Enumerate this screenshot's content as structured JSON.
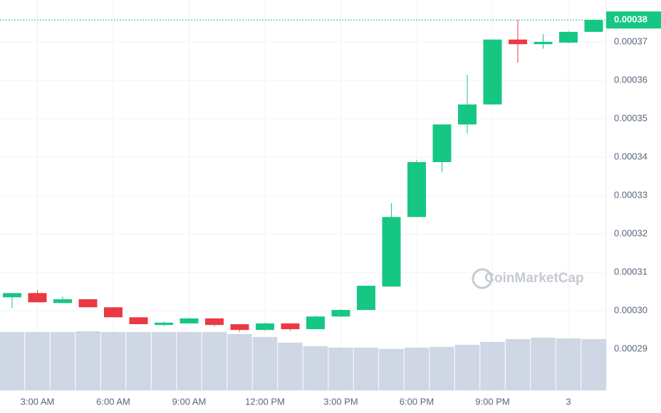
{
  "chart_data": {
    "type": "candlestick",
    "watermark": "CoinMarketCap",
    "categories": [
      null,
      "3:00 AM",
      null,
      null,
      "6:00 AM",
      null,
      null,
      "9:00 AM",
      null,
      null,
      "12:00 PM",
      null,
      null,
      "3:00 PM",
      null,
      null,
      "6:00 PM",
      null,
      null,
      "9:00 PM",
      null,
      null,
      "3",
      null
    ],
    "open": [
      0.0003035,
      0.0003046,
      0.000302,
      0.000303,
      0.0003009,
      0.0002983,
      0.0002963,
      0.0002967,
      0.000298,
      0.0002965,
      0.000295,
      0.0002967,
      0.0002952,
      0.0002985,
      0.0003002,
      0.0003063,
      0.0003244,
      0.0003387,
      0.0003485,
      0.0003537,
      0.0003706,
      0.0003694,
      0.0003698,
      0.0003726
    ],
    "high": [
      0.0003046,
      0.0003054,
      0.0003037,
      0.000303,
      0.0003009,
      0.0002983,
      0.0002972,
      0.0002981,
      0.000298,
      0.0002965,
      0.0002969,
      0.0002967,
      0.0002987,
      0.0003004,
      0.0003065,
      0.000328,
      0.0003393,
      0.0003485,
      0.0003615,
      0.0003706,
      0.0003757,
      0.000372,
      0.0003728,
      0.0003759
    ],
    "low": [
      0.0003007,
      0.0003022,
      0.000302,
      0.0003009,
      0.0002983,
      0.0002965,
      0.0002959,
      0.0002967,
      0.0002959,
      0.0002946,
      0.0002948,
      0.0002948,
      0.0002952,
      0.0002983,
      0.0003002,
      0.0003063,
      0.0003244,
      0.0003361,
      0.0003461,
      0.0003537,
      0.0003646,
      0.0003682,
      0.0003696,
      0.0003726
    ],
    "close": [
      0.0003046,
      0.0003022,
      0.000303,
      0.0003009,
      0.0002983,
      0.0002965,
      0.0002969,
      0.000298,
      0.0002963,
      0.000295,
      0.0002967,
      0.0002952,
      0.0002985,
      0.0003002,
      0.0003065,
      0.0003244,
      0.0003387,
      0.0003485,
      0.0003537,
      0.0003706,
      0.0003694,
      0.00037,
      0.0003726,
      0.0003757
    ],
    "volume": [
      82,
      82,
      82,
      83,
      82,
      82,
      82,
      82,
      82,
      79,
      75,
      67,
      62,
      60,
      60,
      58,
      60,
      61,
      64,
      68,
      72,
      74,
      73,
      72
    ],
    "up_color": "#16c784",
    "down_color": "#ea3943",
    "volume_color": "#cfd6e4",
    "ylim": [
      0.0002793,
      0.0003809
    ],
    "yticks": [
      0.00029,
      {
        "value": 0.0003,
        "label": "0.00030"
      },
      0.00031,
      0.00032,
      0.00033,
      0.00034,
      0.00035,
      0.00036,
      0.00037
    ],
    "last_price": 0.0003757,
    "last_price_label": "0.00038",
    "grid": true
  }
}
